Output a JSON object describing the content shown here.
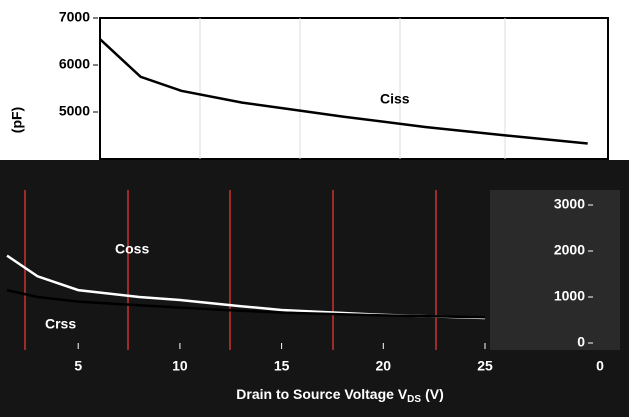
{
  "chart_data": [
    {
      "type": "line",
      "ylabel": "(pF)",
      "x": [
        1,
        3,
        5,
        8,
        10,
        13,
        17,
        21,
        25
      ],
      "series": [
        {
          "name": "Ciss",
          "color": "#000000",
          "values": [
            6550,
            5750,
            5450,
            5200,
            5080,
            4900,
            4680,
            4500,
            4330
          ]
        }
      ],
      "xlim": [
        1,
        26
      ],
      "ylim": [
        4000,
        7000
      ],
      "yticks": [
        5000,
        6000,
        7000
      ]
    },
    {
      "type": "line",
      "xlabel": [
        "Drain to Source Voltage V",
        "DS",
        "(V)"
      ],
      "x": [
        1.5,
        3,
        5,
        8,
        10,
        13,
        15,
        20,
        25
      ],
      "series": [
        {
          "name": "Coss",
          "color": "#ffffff",
          "values": [
            1900,
            1450,
            1150,
            1000,
            935,
            800,
            717,
            610,
            543
          ]
        },
        {
          "name": "Crss",
          "color": "#000000",
          "values": [
            1150,
            1000,
            900,
            820,
            770,
            700,
            660,
            600,
            560
          ]
        }
      ],
      "xlim": [
        1.4,
        25
      ],
      "ylim": [
        0,
        3000
      ],
      "xticks": [
        5,
        10,
        15,
        20,
        25
      ],
      "yticks": [
        0,
        1000,
        2000,
        3000
      ],
      "annotations": [
        "0"
      ]
    }
  ]
}
